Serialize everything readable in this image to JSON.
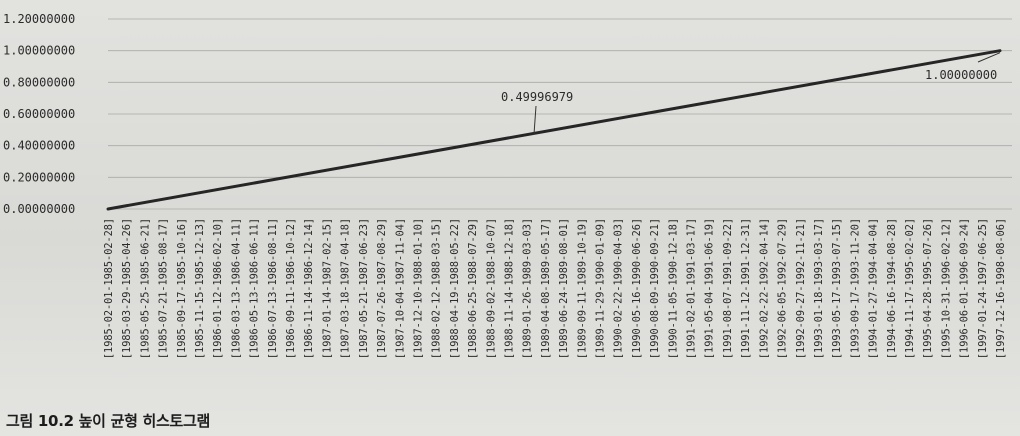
{
  "caption": "그림 10.2 높이 균형 히스토그램",
  "chart_data": {
    "type": "line",
    "ylim": [
      0,
      1.2
    ],
    "yticks": [
      "0.00000000",
      "0.20000000",
      "0.40000000",
      "0.60000000",
      "0.80000000",
      "1.00000000",
      "1.20000000"
    ],
    "ytick_values": [
      0,
      0.2,
      0.4,
      0.6,
      0.8,
      1.0,
      1.2
    ],
    "categories": [
      "[1985-02-01-1985-02-28]",
      "[1985-03-29-1985-04-26]",
      "[1985-05-25-1985-06-21]",
      "[1985-07-21-1985-08-17]",
      "[1985-09-17-1985-10-16]",
      "[1985-11-15-1985-12-13]",
      "[1986-01-12-1986-02-10]",
      "[1986-03-13-1986-04-11]",
      "[1986-05-13-1986-06-11]",
      "[1986-07-13-1986-08-11]",
      "[1986-09-11-1986-10-12]",
      "[1986-11-14-1986-12-14]",
      "[1987-01-14-1987-02-15]",
      "[1987-03-18-1987-04-18]",
      "[1987-05-21-1987-06-23]",
      "[1987-07-26-1987-08-29]",
      "[1987-10-04-1987-11-04]",
      "[1987-12-10-1988-01-10]",
      "[1988-02-12-1988-03-15]",
      "[1988-04-19-1988-05-22]",
      "[1988-06-25-1988-07-29]",
      "[1988-09-02-1988-10-07]",
      "[1988-11-14-1988-12-18]",
      "[1989-01-26-1989-03-03]",
      "[1989-04-08-1989-05-17]",
      "[1989-06-24-1989-08-01]",
      "[1989-09-11-1989-10-19]",
      "[1989-11-29-1990-01-09]",
      "[1990-02-22-1990-04-03]",
      "[1990-05-16-1990-06-26]",
      "[1990-08-09-1990-09-21]",
      "[1990-11-05-1990-12-18]",
      "[1991-02-01-1991-03-17]",
      "[1991-05-04-1991-06-19]",
      "[1991-08-07-1991-09-22]",
      "[1991-11-12-1991-12-31]",
      "[1992-02-22-1992-04-14]",
      "[1992-06-05-1992-07-29]",
      "[1992-09-27-1992-11-21]",
      "[1993-01-18-1993-03-17]",
      "[1993-05-17-1993-07-15]",
      "[1993-09-17-1993-11-20]",
      "[1994-01-27-1994-04-04]",
      "[1994-06-16-1994-08-28]",
      "[1994-11-17-1995-02-02]",
      "[1995-04-28-1995-07-26]",
      "[1995-10-31-1996-02-12]",
      "[1996-06-01-1996-09-24]",
      "[1997-01-24-1997-06-25]",
      "[1997-12-16-1998-08-06]"
    ],
    "y_start": 0,
    "y_end": 1.0,
    "annotations": [
      {
        "label": "0.49996979",
        "value": 0.49996979
      },
      {
        "label": "1.00000000",
        "value": 1.0
      }
    ],
    "grid": true,
    "legend": "none"
  }
}
